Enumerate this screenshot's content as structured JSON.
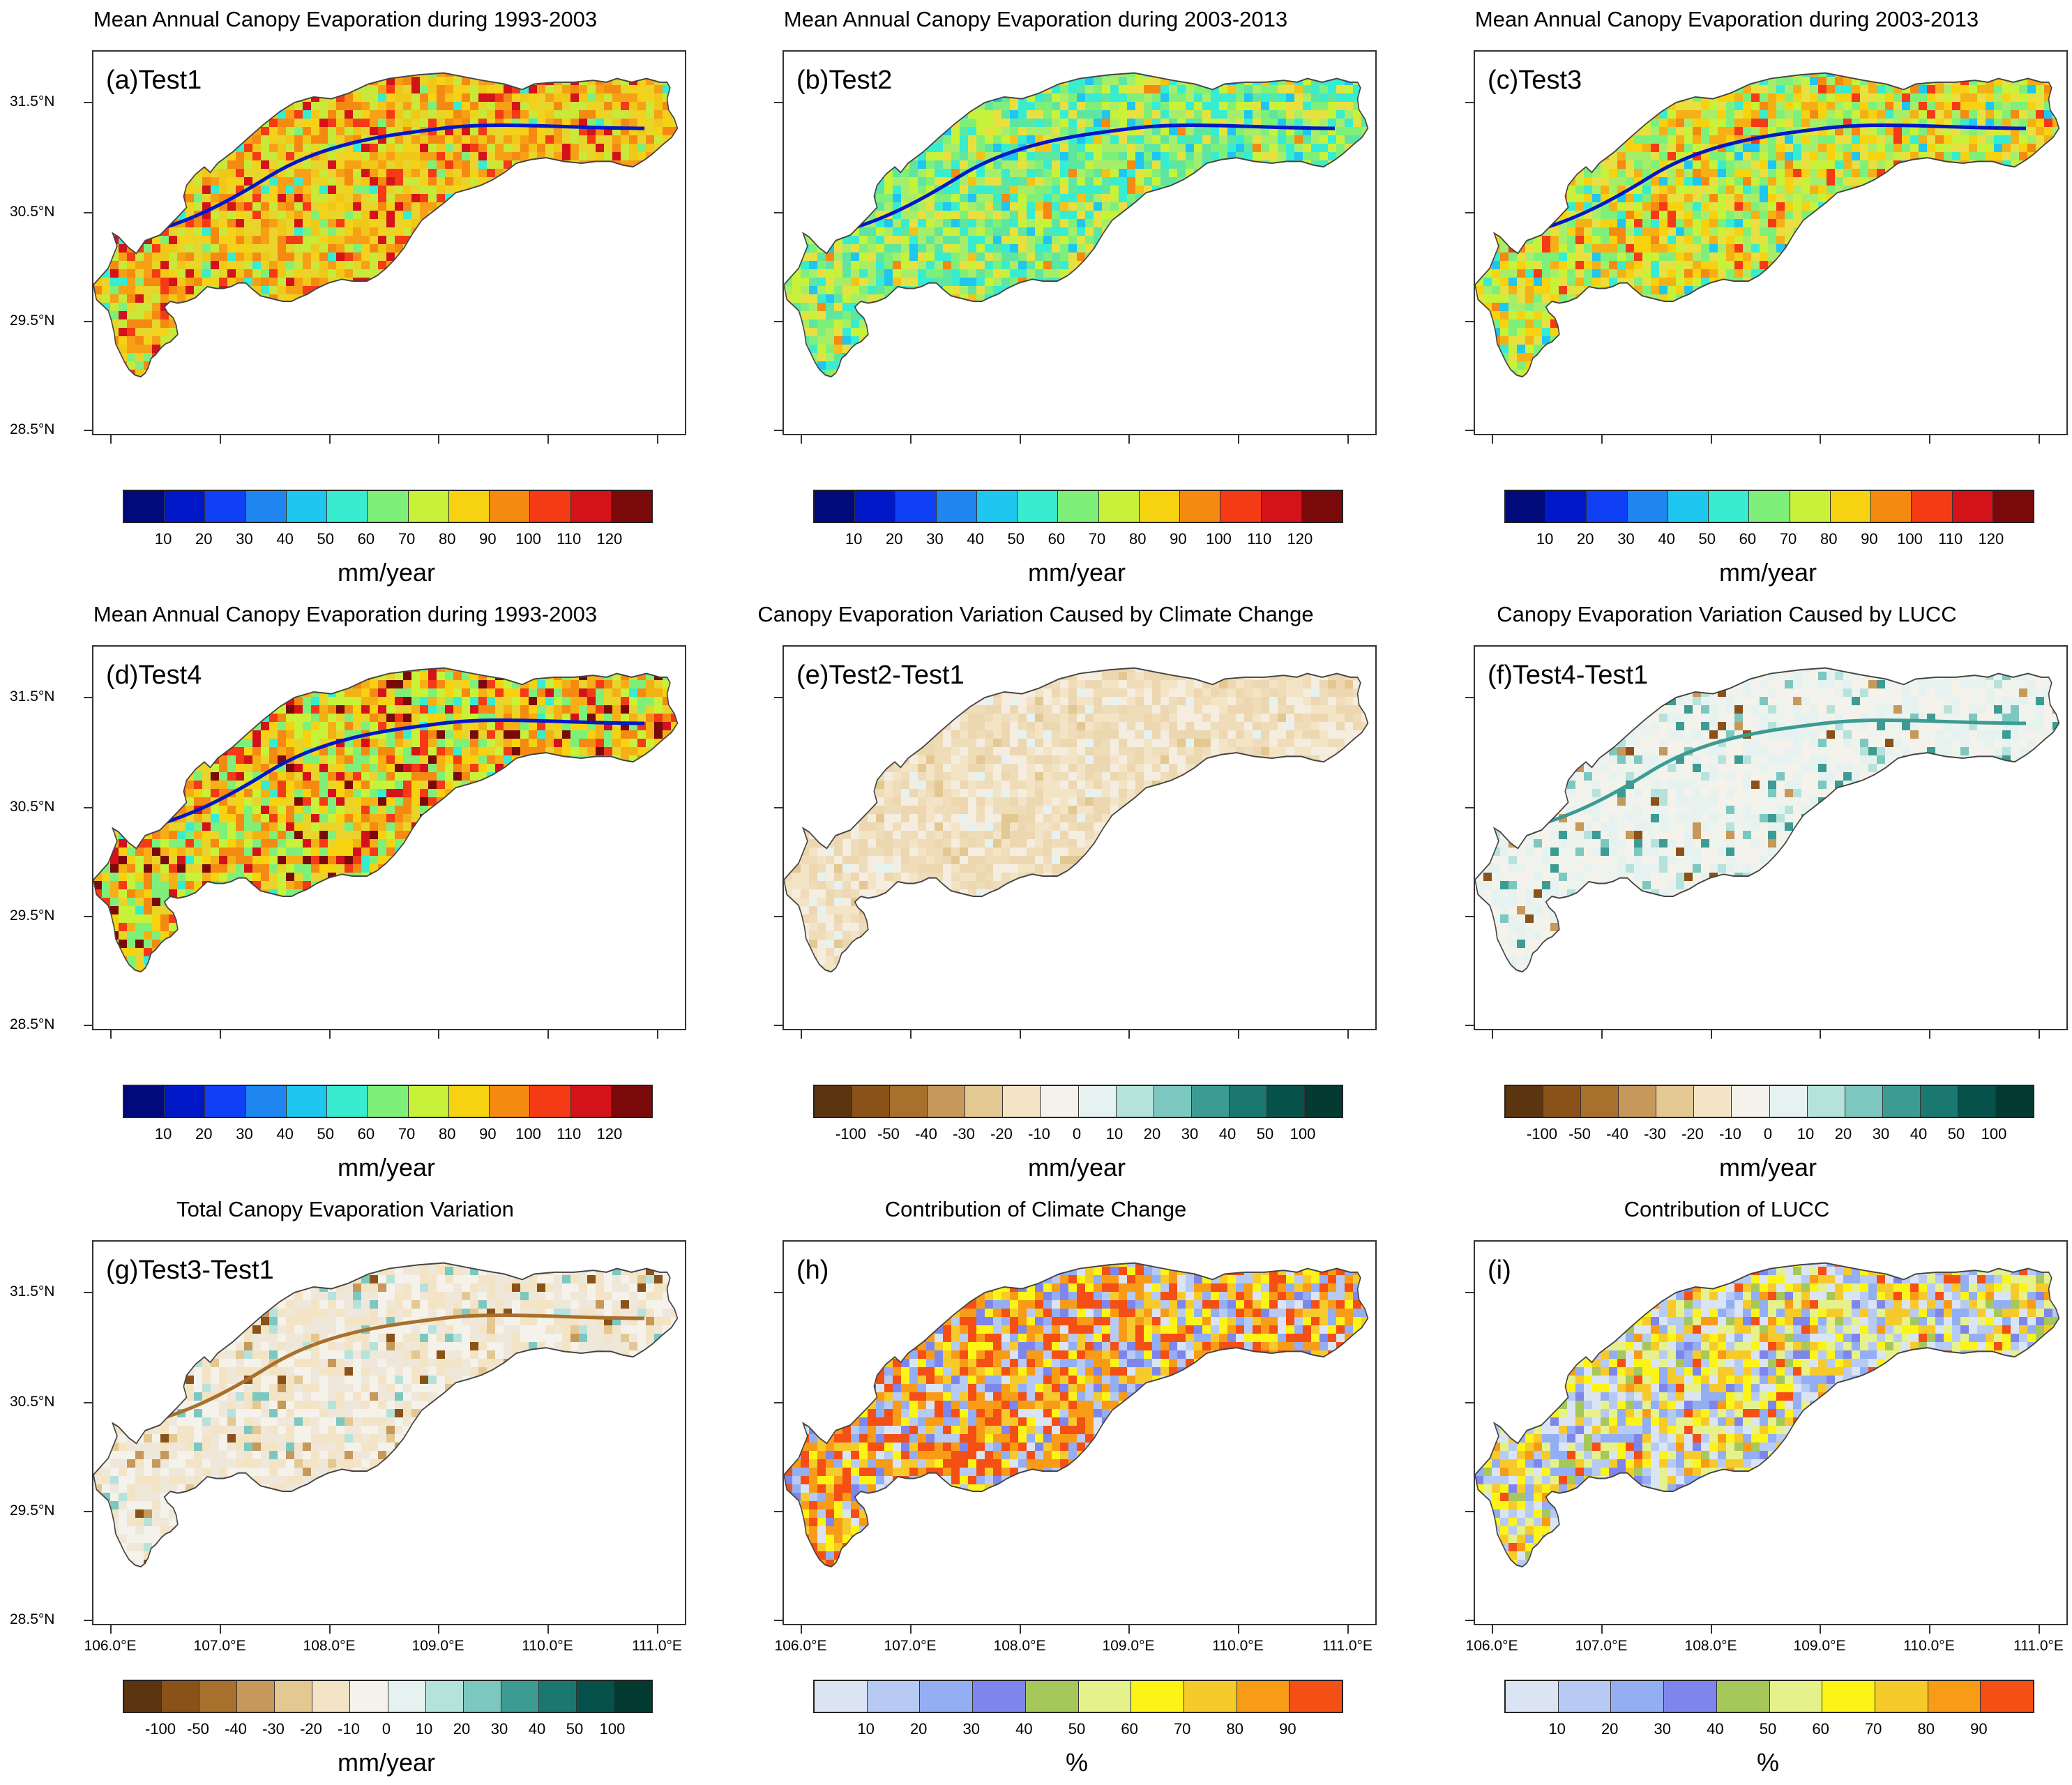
{
  "panels": [
    {
      "id": "a",
      "title": "Mean Annual Canopy Evaporation during 1993-2003",
      "label": "(a)Test1",
      "colorbar": "evap",
      "unit": "mm/year",
      "fill": "evap1"
    },
    {
      "id": "b",
      "title": "Mean Annual Canopy Evaporation during 2003-2013",
      "label": "(b)Test2",
      "colorbar": "evap",
      "unit": "mm/year",
      "fill": "evap2"
    },
    {
      "id": "c",
      "title": "Mean Annual Canopy Evaporation during 2003-2013",
      "label": "(c)Test3",
      "colorbar": "evap",
      "unit": "mm/year",
      "fill": "evap3"
    },
    {
      "id": "d",
      "title": "Mean Annual Canopy Evaporation during 1993-2003",
      "label": "(d)Test4",
      "colorbar": "evap",
      "unit": "mm/year",
      "fill": "evap4"
    },
    {
      "id": "e",
      "title": "Canopy Evaporation Variation Caused by Climate Change",
      "label": "(e)Test2-Test1",
      "colorbar": "diff",
      "unit": "mm/year",
      "fill": "diffE"
    },
    {
      "id": "f",
      "title": "Canopy Evaporation Variation Caused by LUCC",
      "label": "(f)Test4-Test1",
      "colorbar": "diff",
      "unit": "mm/year",
      "fill": "diffF"
    },
    {
      "id": "g",
      "title": "Total Canopy Evaporation Variation",
      "label": "(g)Test3-Test1",
      "colorbar": "diff",
      "unit": "mm/year",
      "fill": "diffG"
    },
    {
      "id": "h",
      "title": "Contribution of Climate Change",
      "label": "(h)",
      "colorbar": "pct",
      "unit": "%",
      "fill": "pctH"
    },
    {
      "id": "i",
      "title": "Contribution of LUCC",
      "label": "(i)",
      "colorbar": "pct",
      "unit": "%",
      "fill": "pctI"
    }
  ],
  "lat_labels": [
    "31.5°N",
    "30.5°N",
    "29.5°N",
    "28.5°N"
  ],
  "lon_labels": [
    "106.0°E",
    "107.0°E",
    "108.0°E",
    "109.0°E",
    "110.0°E",
    "111.0°E"
  ],
  "colorbars": {
    "evap": {
      "colors": [
        "#000a7a",
        "#0018c8",
        "#1040f5",
        "#1f86f0",
        "#1fc6f0",
        "#38ecd0",
        "#7ef07a",
        "#c8f23a",
        "#f7d210",
        "#f58a12",
        "#f53a16",
        "#d4121a",
        "#7a0a0a"
      ],
      "ticks": [
        "10",
        "20",
        "30",
        "40",
        "50",
        "60",
        "70",
        "80",
        "90",
        "100",
        "110",
        "120"
      ]
    },
    "diff": {
      "colors": [
        "#5a3510",
        "#8a5218",
        "#a8702c",
        "#c6985a",
        "#e3c892",
        "#f3e4c6",
        "#f4f2ea",
        "#e6f2f0",
        "#b6e2dc",
        "#7cc8c0",
        "#3c9c94",
        "#1a7870",
        "#06524a",
        "#033a32"
      ],
      "ticks": [
        "-100",
        "-50",
        "-40",
        "-30",
        "-20",
        "-10",
        "0",
        "10",
        "20",
        "30",
        "40",
        "50",
        "100"
      ]
    },
    "pct": {
      "colors": [
        "#dae4f3",
        "#b7caf3",
        "#93aef3",
        "#7e86ec",
        "#a6c85a",
        "#e5f28c",
        "#fbf416",
        "#f7ca2c",
        "#f89c18",
        "#f44f14"
      ],
      "ticks": [
        "10",
        "20",
        "30",
        "40",
        "50",
        "60",
        "70",
        "80",
        "90"
      ]
    }
  }
}
